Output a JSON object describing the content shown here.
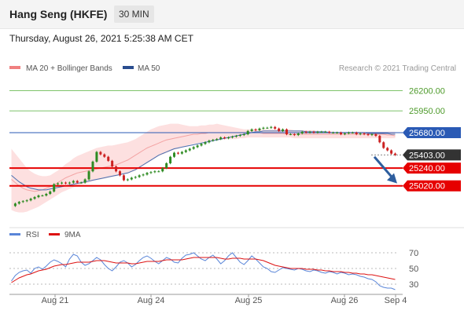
{
  "header": {
    "instrument": "Hang Seng (HKFE)",
    "timeframe": "30 MIN",
    "datetime": "Thursday, August 26, 2021 5:25:38 AM CET",
    "copyright": "Research © 2021 Trading Central"
  },
  "colors": {
    "bollinger": "#f08080",
    "ma50": "#4a6fb0",
    "up_candle": "#2e8b22",
    "down_candle": "#cc2222",
    "level_green": "#7ec46a",
    "level_blue": "#2a5ab5",
    "level_red": "#e60000",
    "current_price_bg": "#333333",
    "arrow": "#2e5e9e",
    "rsi": "#5a85d8",
    "rsi_9ma": "#dd1111"
  },
  "chart_data": [
    {
      "type": "candlestick",
      "title": "Hang Seng (HKFE)",
      "timeframe": "30 MIN",
      "legend": [
        {
          "name": "MA 20 + Bollinger Bands",
          "color": "#f08080"
        },
        {
          "name": "MA 50",
          "color": "#2a4d8f"
        }
      ],
      "x_ticks": [
        "Aug 21",
        "Aug 24",
        "Aug 25",
        "Aug 26",
        "Sep 4"
      ],
      "ylim": [
        24550,
        26400
      ],
      "price": [
        24770,
        24800,
        24820,
        24830,
        24840,
        24860,
        24880,
        24900,
        24900,
        24920,
        24950,
        25040,
        25050,
        25060,
        25050,
        25060,
        25080,
        25060,
        25060,
        25100,
        25200,
        25320,
        25440,
        25410,
        25380,
        25330,
        25260,
        25200,
        25150,
        25090,
        25100,
        25120,
        25130,
        25150,
        25160,
        25180,
        25190,
        25200,
        25200,
        25240,
        25300,
        25380,
        25430,
        25420,
        25440,
        25460,
        25480,
        25500,
        25520,
        25540,
        25560,
        25580,
        25590,
        25600,
        25620,
        25610,
        25620,
        25630,
        25640,
        25650,
        25660,
        25700,
        25720,
        25710,
        25730,
        25740,
        25740,
        25750,
        25730,
        25700,
        25720,
        25660,
        25660,
        25650,
        25670,
        25690,
        25680,
        25690,
        25680,
        25690,
        25690,
        25690,
        25680,
        25680,
        25680,
        25660,
        25670,
        25680,
        25680,
        25660,
        25670,
        25660,
        25650,
        25660,
        25640,
        25560,
        25490,
        25460,
        25420,
        25403
      ],
      "bb_upper": [
        25480,
        25420,
        25360,
        25300,
        25240,
        25200,
        25170,
        25150,
        25140,
        25140,
        25150,
        25180,
        25210,
        25250,
        25290,
        25320,
        25360,
        25390,
        25410,
        25430,
        25450,
        25470,
        25490,
        25500,
        25510,
        25520,
        25520,
        25530,
        25540,
        25550,
        25560,
        25580,
        25600,
        25630,
        25660,
        25690,
        25720,
        25740,
        25760,
        25770,
        25780,
        25790,
        25790,
        25790,
        25780,
        25770,
        25760,
        25760,
        25760,
        25770,
        25770,
        25780,
        25780,
        25790,
        25780,
        25770,
        25760,
        25750,
        25740,
        25730,
        25720,
        25720,
        25720,
        25720,
        25720,
        25720,
        25720,
        25720,
        25720,
        25720,
        25720,
        25720,
        25720,
        25710,
        25710,
        25710,
        25710,
        25710,
        25710,
        25700,
        25700,
        25700,
        25700,
        25690,
        25690,
        25690,
        25690,
        25690,
        25690,
        25690,
        25690,
        25690,
        25690,
        25690,
        25690,
        25690,
        25690,
        25690,
        25690,
        25690
      ],
      "ma20": [
        25100,
        25060,
        25020,
        24990,
        24970,
        24960,
        24950,
        24960,
        24970,
        24990,
        25010,
        25030,
        25060,
        25090,
        25120,
        25140,
        25160,
        25180,
        25190,
        25200,
        25210,
        25220,
        25230,
        25240,
        25250,
        25260,
        25270,
        25280,
        25300,
        25320,
        25340,
        25370,
        25400,
        25430,
        25460,
        25490,
        25510,
        25530,
        25550,
        25570,
        25590,
        25600,
        25610,
        25620,
        25630,
        25640,
        25650,
        25660,
        25660,
        25670,
        25670,
        25680,
        25680,
        25680,
        25680,
        25680,
        25680,
        25680,
        25680,
        25680,
        25680,
        25680,
        25680,
        25680,
        25680,
        25670,
        25670,
        25670,
        25670,
        25670,
        25670,
        25660,
        25660,
        25660,
        25660,
        25660,
        25660,
        25660,
        25660,
        25660,
        25660,
        25660,
        25660,
        25660,
        25660,
        25660,
        25660,
        25660,
        25660,
        25660,
        25660,
        25660,
        25660,
        25660,
        25660,
        25660,
        25660,
        25650,
        25650,
        25640
      ],
      "bb_lower": [
        24720,
        24700,
        24690,
        24690,
        24700,
        24720,
        24740,
        24760,
        24790,
        24820,
        24850,
        24880,
        24910,
        24940,
        24960,
        24980,
        25000,
        25020,
        25040,
        25050,
        25060,
        25080,
        25090,
        25100,
        25110,
        25120,
        25130,
        25140,
        25150,
        25160,
        25170,
        25190,
        25210,
        25240,
        25270,
        25300,
        25330,
        25360,
        25390,
        25410,
        25430,
        25450,
        25470,
        25480,
        25500,
        25510,
        25530,
        25540,
        25550,
        25560,
        25570,
        25580,
        25580,
        25590,
        25590,
        25600,
        25600,
        25600,
        25600,
        25610,
        25610,
        25620,
        25620,
        25620,
        25620,
        25620,
        25620,
        25620,
        25620,
        25620,
        25620,
        25620,
        25620,
        25610,
        25610,
        25610,
        25610,
        25610,
        25610,
        25610,
        25610,
        25610,
        25610,
        25610,
        25610,
        25610,
        25610,
        25610,
        25610,
        25610,
        25610,
        25610,
        25610,
        25610,
        25610,
        25610,
        25610,
        25610,
        25610,
        25610
      ],
      "ma50": [
        25150,
        25110,
        25070,
        25040,
        25010,
        24990,
        24980,
        24970,
        24970,
        24970,
        24980,
        24990,
        25000,
        25010,
        25020,
        25030,
        25040,
        25050,
        25060,
        25070,
        25080,
        25090,
        25100,
        25110,
        25120,
        25130,
        25140,
        25150,
        25160,
        25170,
        25180,
        25200,
        25220,
        25250,
        25280,
        25310,
        25340,
        25370,
        25400,
        25420,
        25440,
        25460,
        25480,
        25490,
        25500,
        25510,
        25520,
        25530,
        25540,
        25550,
        25560,
        25570,
        25580,
        25590,
        25600,
        25610,
        25620,
        25630,
        25640,
        25650,
        25660,
        25670,
        25680,
        25690,
        25690,
        25700,
        25700,
        25700,
        25700,
        25700,
        25700,
        25700,
        25700,
        25700,
        25700,
        25700,
        25690,
        25690,
        25690,
        25690,
        25690,
        25690,
        25680,
        25680,
        25680,
        25680,
        25680,
        25680,
        25680,
        25680,
        25680,
        25680,
        25670,
        25670,
        25670,
        25670,
        25670,
        25670,
        25660,
        25660
      ],
      "levels": [
        {
          "value": 26200,
          "label": "26200.00",
          "style": "resistance"
        },
        {
          "value": 25950,
          "label": "25950.00",
          "style": "resistance"
        },
        {
          "value": 25680,
          "label": "25680.00",
          "style": "pivot"
        },
        {
          "value": 25403,
          "label": "25403.00",
          "style": "current"
        },
        {
          "value": 25240,
          "label": "25240.00",
          "style": "support"
        },
        {
          "value": 25020,
          "label": "25020.00",
          "style": "support"
        }
      ],
      "forecast_arrow": {
        "from": 25380,
        "to": 25050,
        "direction": "down"
      }
    },
    {
      "type": "line",
      "legend": [
        {
          "name": "RSI",
          "color": "#5a85d8"
        },
        {
          "name": "9MA",
          "color": "#dd1111"
        }
      ],
      "ylim": [
        20,
        80
      ],
      "y_ticks": [
        70,
        50,
        30
      ],
      "series": [
        {
          "name": "RSI",
          "values": [
            34,
            41,
            45,
            47,
            48,
            44,
            50,
            52,
            49,
            53,
            58,
            61,
            59,
            56,
            52,
            62,
            68,
            66,
            58,
            54,
            56,
            60,
            64,
            61,
            55,
            50,
            47,
            52,
            58,
            60,
            57,
            52,
            55,
            60,
            64,
            66,
            63,
            59,
            56,
            60,
            64,
            62,
            58,
            57,
            63,
            67,
            68,
            70,
            66,
            62,
            60,
            64,
            67,
            62,
            56,
            60,
            66,
            70,
            64,
            58,
            55,
            60,
            66,
            62,
            57,
            52,
            50,
            46,
            45,
            48,
            51,
            50,
            49,
            48,
            50,
            49,
            47,
            46,
            48,
            47,
            45,
            44,
            46,
            45,
            43,
            45,
            44,
            42,
            43,
            42,
            40,
            39,
            37,
            36,
            33,
            28,
            26,
            25,
            25,
            23
          ]
        },
        {
          "name": "9MA",
          "values": [
            32,
            35,
            38,
            40,
            42,
            43,
            45,
            47,
            48,
            49,
            51,
            53,
            54,
            55,
            55,
            56,
            57,
            58,
            58,
            58,
            58,
            59,
            60,
            60,
            60,
            59,
            58,
            57,
            57,
            57,
            57,
            56,
            56,
            57,
            58,
            59,
            59,
            59,
            59,
            60,
            61,
            61,
            61,
            61,
            61,
            62,
            63,
            64,
            64,
            64,
            64,
            64,
            64,
            64,
            63,
            62,
            62,
            63,
            63,
            63,
            62,
            62,
            62,
            62,
            61,
            60,
            58,
            56,
            54,
            53,
            52,
            51,
            50,
            50,
            50,
            50,
            49,
            49,
            49,
            48,
            48,
            47,
            47,
            46,
            46,
            46,
            45,
            45,
            44,
            44,
            43,
            43,
            42,
            42,
            41,
            40,
            39,
            38,
            37,
            36
          ]
        }
      ]
    }
  ]
}
